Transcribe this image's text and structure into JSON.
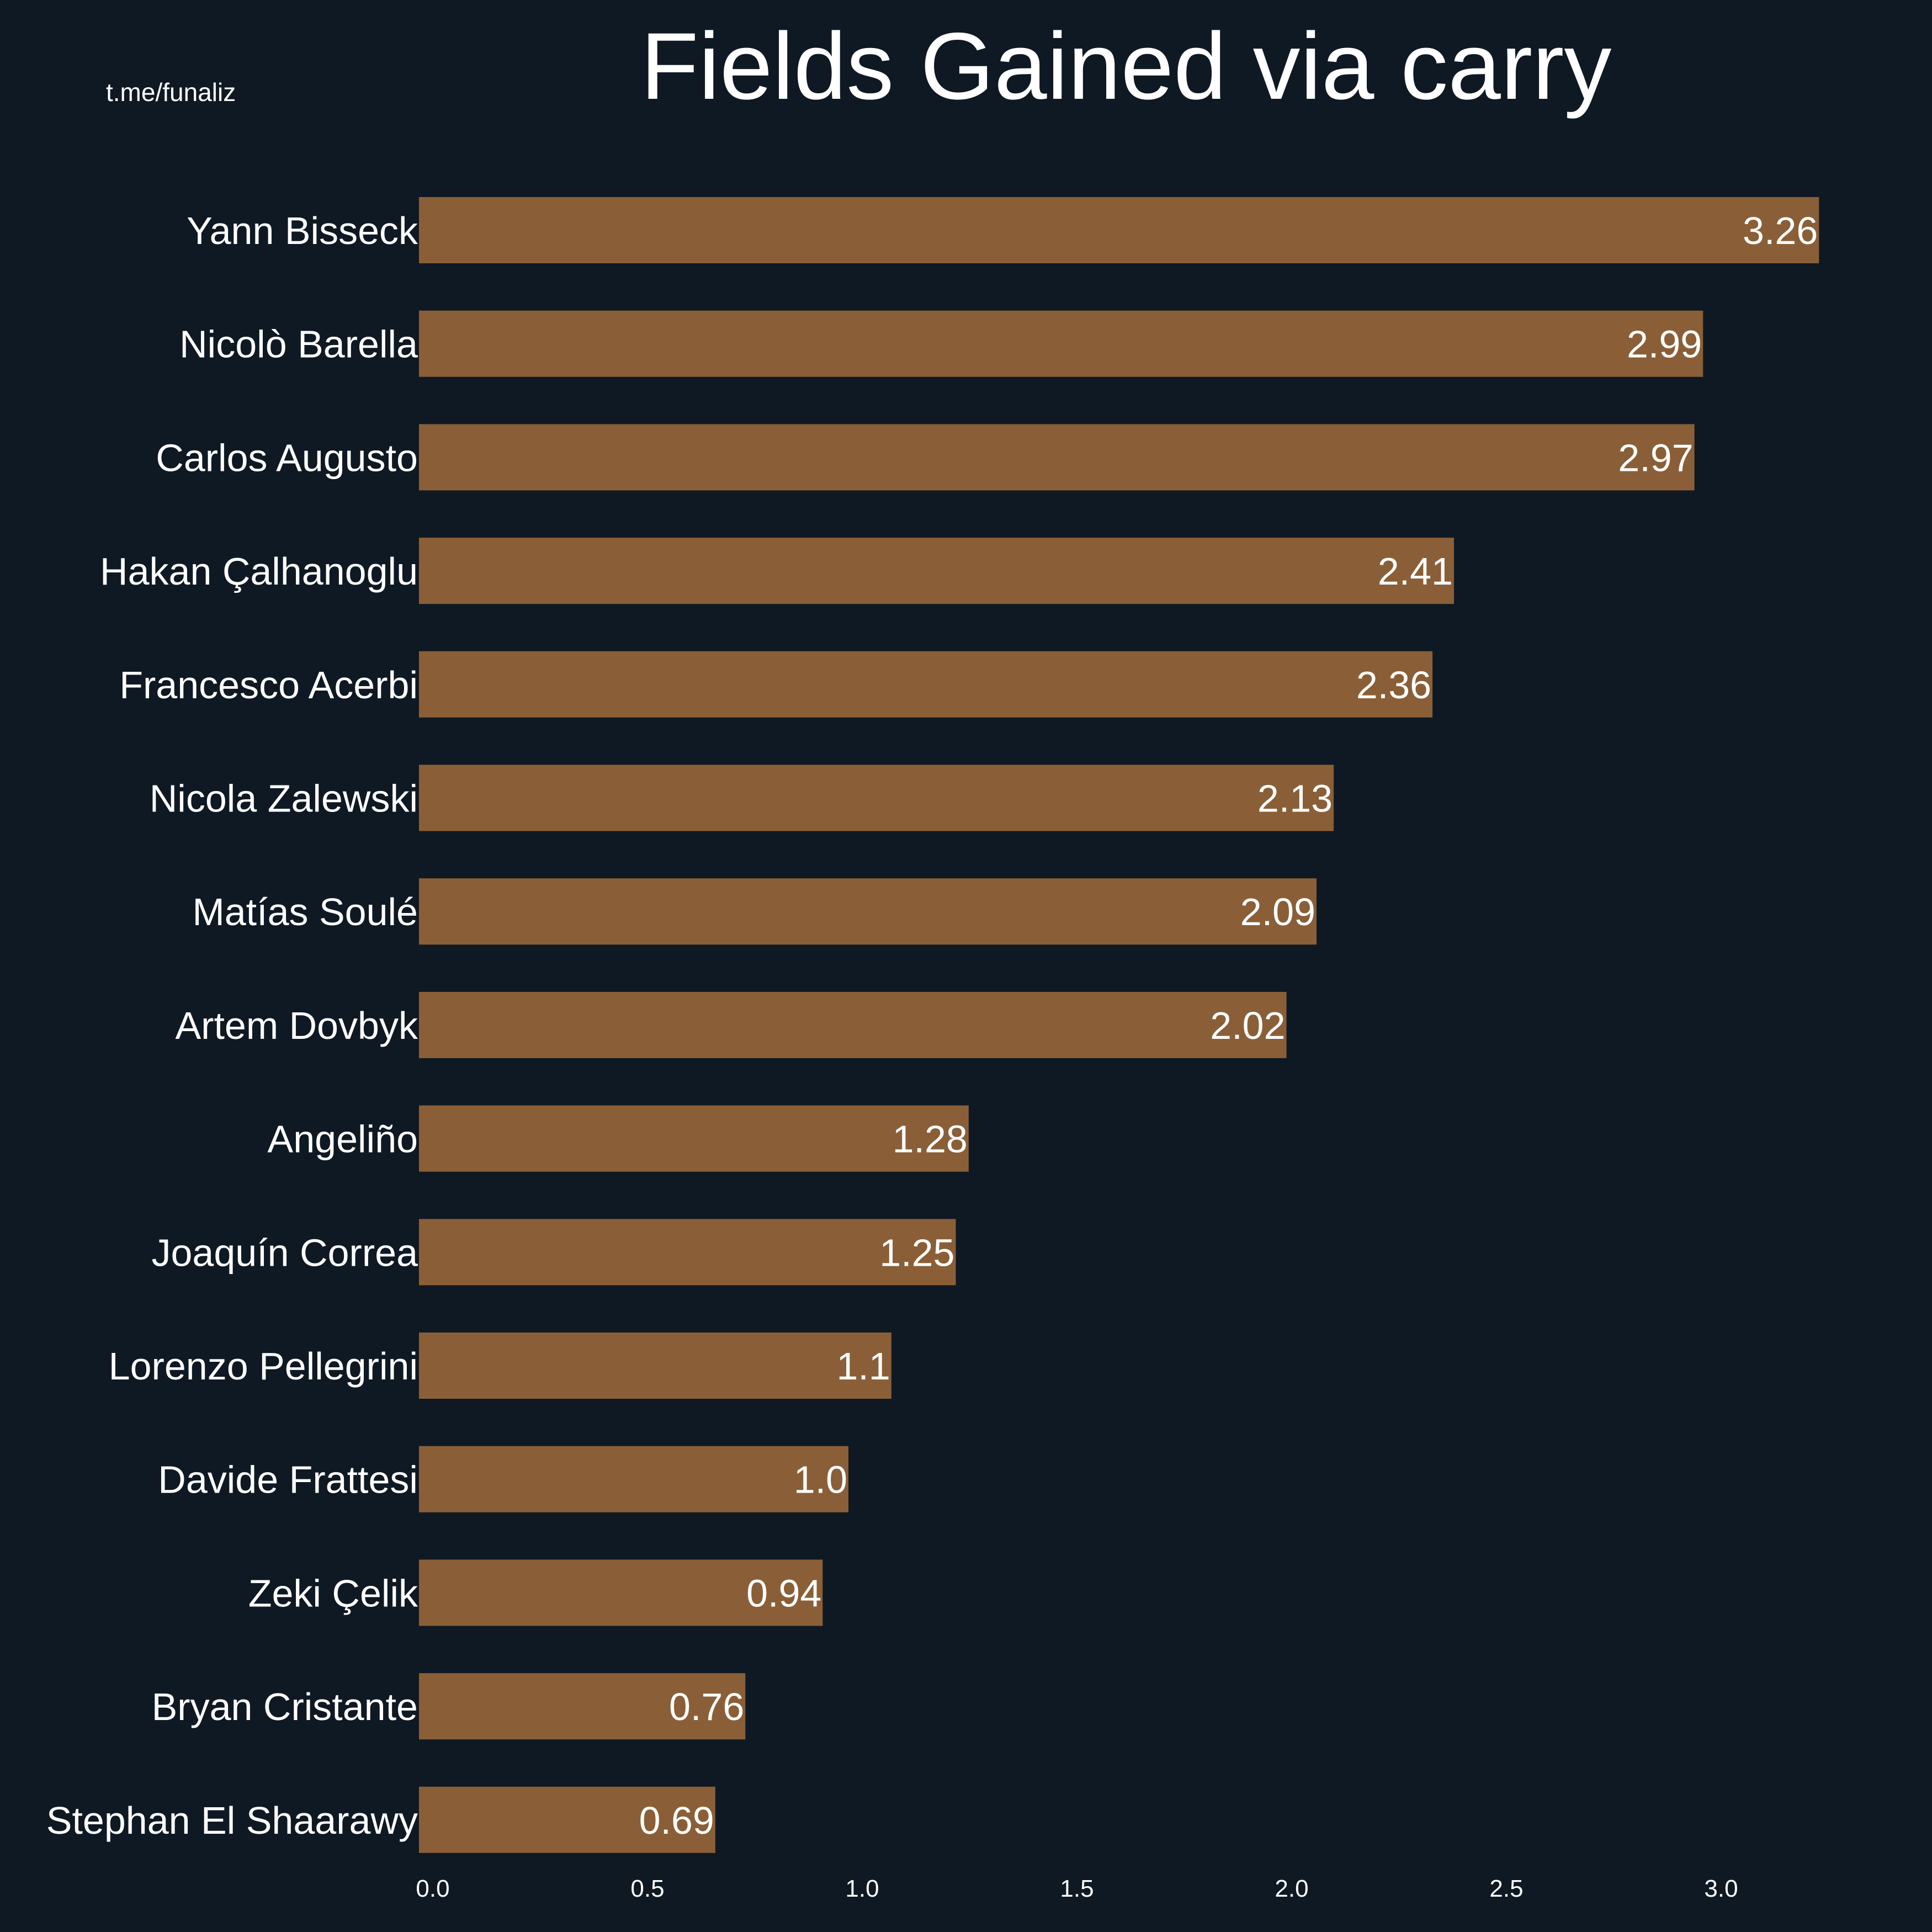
{
  "watermark": "t.me/funaliz",
  "colors": {
    "background": "#0f1923",
    "bar": "#8a5f37",
    "text": "#ffffff"
  },
  "chart_data": {
    "type": "bar",
    "orientation": "horizontal",
    "title": "Fields Gained via carry",
    "xlabel": "",
    "ylabel": "",
    "xlim": [
      0,
      3.42
    ],
    "xticks": [
      "0.0",
      "0.5",
      "1.0",
      "1.5",
      "2.0",
      "2.5",
      "3.0"
    ],
    "grid": false,
    "categories": [
      "Yann Bisseck",
      "Nicolò Barella",
      "Carlos Augusto",
      "Hakan Çalhanoglu",
      "Francesco Acerbi",
      "Nicola Zalewski",
      "Matías Soulé",
      "Artem Dovbyk",
      "Angeliño",
      "Joaquín Correa",
      "Lorenzo Pellegrini",
      "Davide Frattesi",
      "Zeki Çelik",
      "Bryan Cristante",
      "Stephan El Shaarawy"
    ],
    "values": [
      3.26,
      2.99,
      2.97,
      2.41,
      2.36,
      2.13,
      2.09,
      2.02,
      1.28,
      1.25,
      1.1,
      1.0,
      0.94,
      0.76,
      0.69
    ],
    "value_labels": [
      "3.26",
      "2.99",
      "2.97",
      "2.41",
      "2.36",
      "2.13",
      "2.09",
      "2.02",
      "1.28",
      "1.25",
      "1.1",
      "1.0",
      "0.94",
      "0.76",
      "0.69"
    ]
  }
}
